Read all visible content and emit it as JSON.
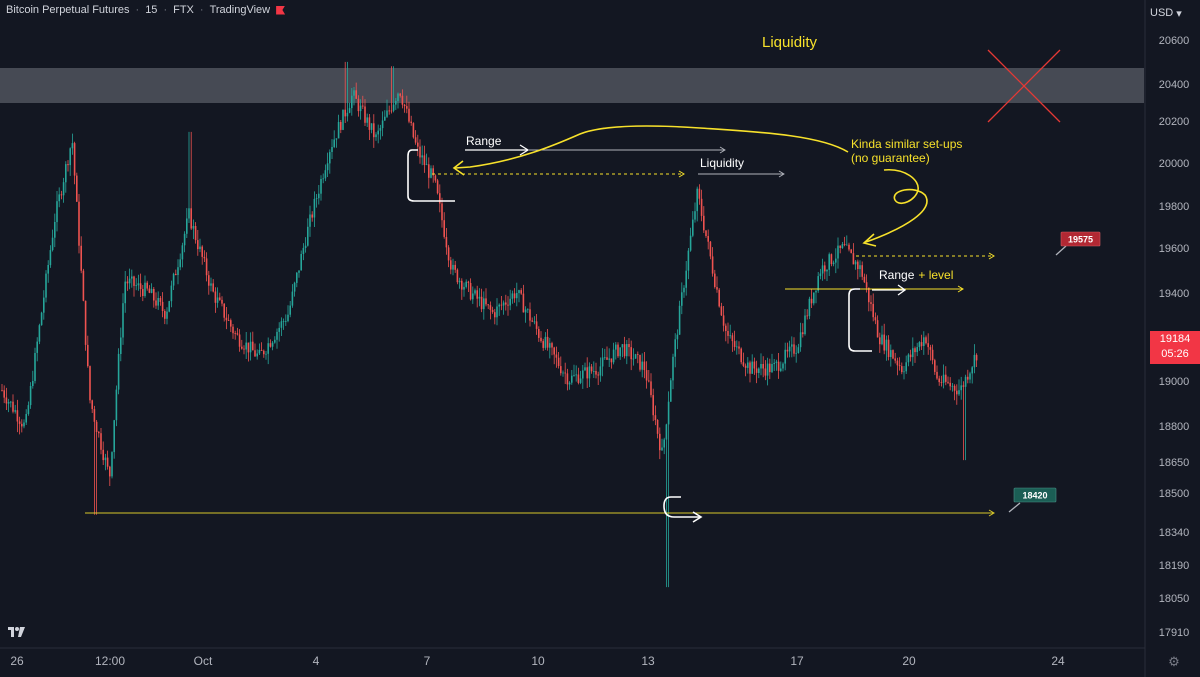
{
  "header": {
    "symbol": "Bitcoin Perpetual Futures",
    "interval": "15",
    "exchange": "FTX",
    "platform": "TradingView",
    "flag_color": "#f23645"
  },
  "scale": {
    "unit": "USD",
    "settings_icon": "gear-icon"
  },
  "current_price": {
    "value": "19184",
    "countdown": "05:26",
    "color": "#f23645"
  },
  "chart_data": {
    "type": "candlestick",
    "x_tick_labels": [
      "26",
      "12:00",
      "Oct",
      "4",
      "7",
      "10",
      "13",
      "17",
      "20",
      "24"
    ],
    "y_tick_labels": [
      "20600",
      "20400",
      "20200",
      "20000",
      "19800",
      "19600",
      "19400",
      "19000",
      "18800",
      "18650",
      "18500",
      "18340",
      "18190",
      "18050",
      "17910"
    ],
    "ylim": [
      17900,
      20680
    ],
    "price_path": [
      {
        "x": 0.0,
        "y": 19000
      },
      {
        "x": 2.0,
        "y": 18830
      },
      {
        "x": 4.5,
        "y": 19780
      },
      {
        "x": 6.0,
        "y": 20150
      },
      {
        "x": 7.5,
        "y": 18960
      },
      {
        "x": 9.2,
        "y": 18600
      },
      {
        "x": 10.5,
        "y": 19500
      },
      {
        "x": 12.5,
        "y": 19450
      },
      {
        "x": 14.0,
        "y": 19350
      },
      {
        "x": 16.0,
        "y": 19800
      },
      {
        "x": 18.0,
        "y": 19450
      },
      {
        "x": 20.0,
        "y": 19250
      },
      {
        "x": 22.0,
        "y": 19150
      },
      {
        "x": 24.5,
        "y": 19350
      },
      {
        "x": 26.0,
        "y": 19700
      },
      {
        "x": 28.0,
        "y": 20100
      },
      {
        "x": 30.0,
        "y": 20350
      },
      {
        "x": 32.0,
        "y": 20150
      },
      {
        "x": 34.0,
        "y": 20380
      },
      {
        "x": 35.5,
        "y": 20100
      },
      {
        "x": 37.0,
        "y": 19950
      },
      {
        "x": 38.5,
        "y": 19550
      },
      {
        "x": 40.0,
        "y": 19450
      },
      {
        "x": 42.0,
        "y": 19350
      },
      {
        "x": 44.0,
        "y": 19450
      },
      {
        "x": 46.0,
        "y": 19250
      },
      {
        "x": 48.5,
        "y": 19050
      },
      {
        "x": 51.0,
        "y": 19100
      },
      {
        "x": 53.0,
        "y": 19200
      },
      {
        "x": 55.0,
        "y": 19100
      },
      {
        "x": 56.5,
        "y": 18700
      },
      {
        "x": 57.3,
        "y": 19100
      },
      {
        "x": 58.5,
        "y": 19550
      },
      {
        "x": 59.5,
        "y": 19900
      },
      {
        "x": 61.0,
        "y": 19500
      },
      {
        "x": 62.0,
        "y": 19250
      },
      {
        "x": 64.0,
        "y": 19100
      },
      {
        "x": 66.0,
        "y": 19100
      },
      {
        "x": 68.0,
        "y": 19200
      },
      {
        "x": 70.0,
        "y": 19550
      },
      {
        "x": 72.0,
        "y": 19650
      },
      {
        "x": 73.5,
        "y": 19550
      },
      {
        "x": 75.0,
        "y": 19250
      },
      {
        "x": 77.0,
        "y": 19100
      },
      {
        "x": 79.0,
        "y": 19250
      },
      {
        "x": 80.0,
        "y": 19050
      },
      {
        "x": 82.0,
        "y": 19000
      },
      {
        "x": 83.5,
        "y": 19184
      }
    ],
    "candle_color_up": "#26a69a",
    "candle_color_down": "#ef5350"
  },
  "annotations": {
    "liquidity_top_label": "Liquidity",
    "range_label": "Range",
    "liquidity_mid_label": "Liquidity",
    "similar_setups_line1": "Kinda similar set-ups",
    "similar_setups_line2": "(no guarantee)",
    "range_level_label": "Range",
    "range_level_suffix": "+ level",
    "zone_color": "#4a4d57",
    "yellow": "#f7e12b",
    "cross_color": "#e53935"
  },
  "price_tags": {
    "upper": {
      "value": "19575",
      "color": "#b22833"
    },
    "lower": {
      "value": "18420",
      "color": "#1b5e55"
    }
  }
}
